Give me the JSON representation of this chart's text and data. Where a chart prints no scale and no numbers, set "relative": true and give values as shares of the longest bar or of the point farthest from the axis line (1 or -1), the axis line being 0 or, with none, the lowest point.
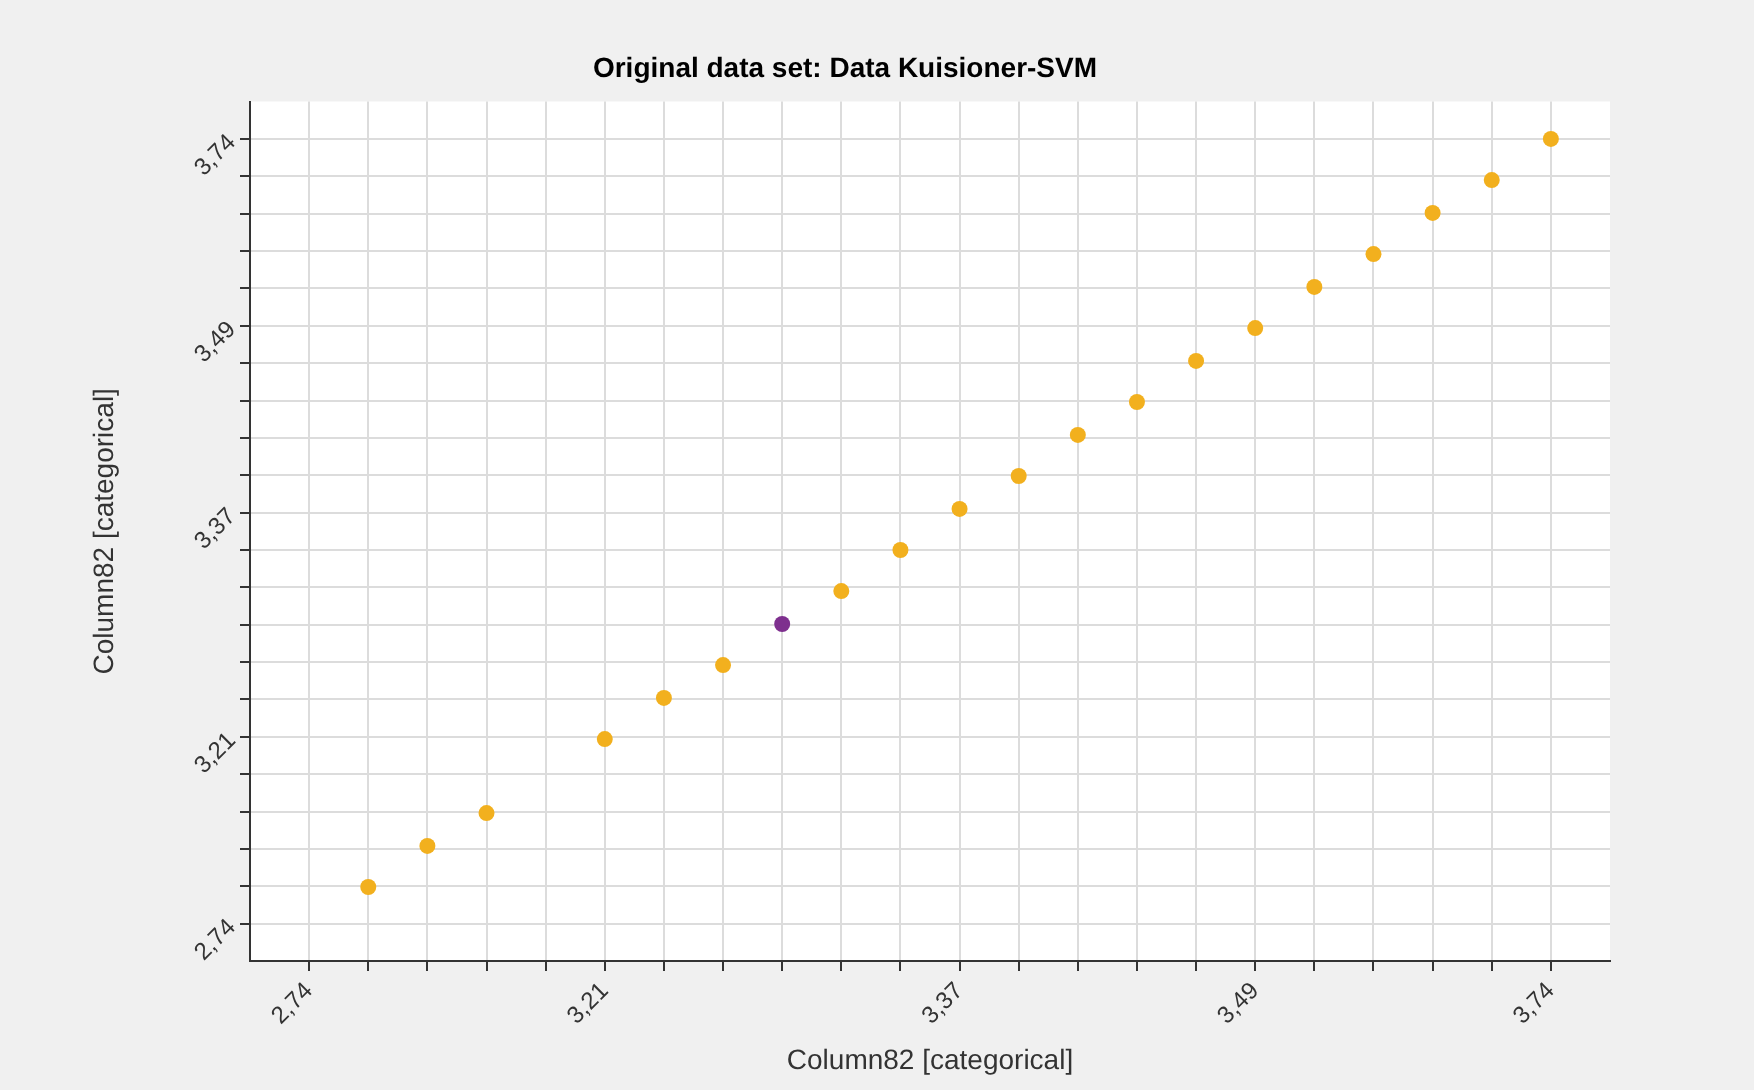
{
  "chart_data": {
    "type": "scatter",
    "title": "Original data set: Data Kuisioner-SVM",
    "xlabel": "Column82 [categorical]",
    "ylabel": "Column82 [categorical]",
    "categories": [
      "2,74",
      null,
      null,
      null,
      null,
      "3,21",
      null,
      null,
      null,
      null,
      null,
      "3,37",
      null,
      null,
      null,
      null,
      "3,49",
      null,
      null,
      null,
      null,
      "3,74"
    ],
    "relative": true,
    "annotations": [
      "2,74",
      "3,21",
      "3,37",
      "3,49",
      "3,74"
    ],
    "series": [
      {
        "color": "#f2b01e",
        "values": [
          null,
          0.09,
          0.14,
          0.18,
          null,
          0.27,
          0.32,
          0.36,
          null,
          0.45,
          0.5,
          0.55,
          0.59,
          0.64,
          0.68,
          0.73,
          0.77,
          0.82,
          0.86,
          0.91,
          0.95,
          1
        ]
      },
      {
        "color": "#7e2f8e",
        "values": [
          null,
          null,
          null,
          null,
          null,
          null,
          null,
          null,
          0.41,
          null,
          null,
          null,
          null,
          null,
          null,
          null,
          null,
          null,
          null,
          null,
          null,
          null
        ]
      }
    ],
    "grid": true,
    "legend": false,
    "marker": "circle"
  }
}
